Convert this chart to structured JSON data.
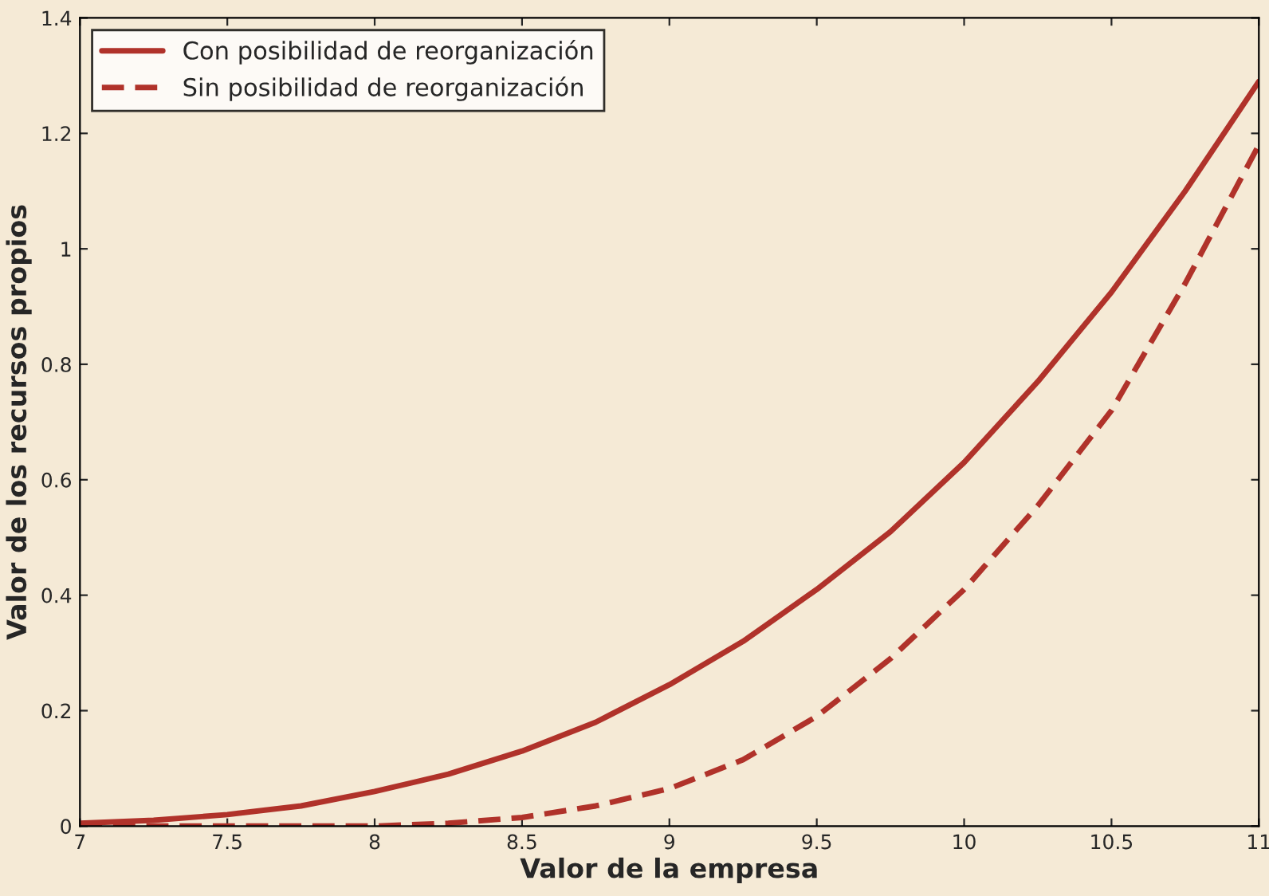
{
  "chart_data": {
    "type": "line",
    "xlabel": "Valor de la empresa",
    "ylabel": "Valor de los recursos propios",
    "x": [
      7,
      7.25,
      7.5,
      7.75,
      8,
      8.25,
      8.5,
      8.75,
      9,
      9.25,
      9.5,
      9.75,
      10,
      10.25,
      10.5,
      10.75,
      11
    ],
    "series": [
      {
        "name": "Con posibilidad de reorganización",
        "color": "#b0322a",
        "line_style": "solid",
        "values": [
          0.005,
          0.01,
          0.02,
          0.035,
          0.06,
          0.09,
          0.13,
          0.18,
          0.245,
          0.32,
          0.41,
          0.51,
          0.63,
          0.77,
          0.925,
          1.1,
          1.29
        ]
      },
      {
        "name": "Sin posibilidad de reorganización",
        "color": "#b0322a",
        "line_style": "dashed",
        "values": [
          0,
          0,
          0,
          0,
          0,
          0.005,
          0.015,
          0.035,
          0.065,
          0.115,
          0.19,
          0.29,
          0.41,
          0.555,
          0.72,
          0.94,
          1.18
        ]
      }
    ],
    "xlim": [
      7,
      11
    ],
    "ylim": [
      0,
      1.4
    ],
    "xticks": [
      7,
      7.5,
      8,
      8.5,
      9,
      9.5,
      10,
      10.5,
      11
    ],
    "yticks": [
      0,
      0.2,
      0.4,
      0.6,
      0.8,
      1,
      1.2,
      1.4
    ],
    "grid": false,
    "legend": "top left"
  }
}
